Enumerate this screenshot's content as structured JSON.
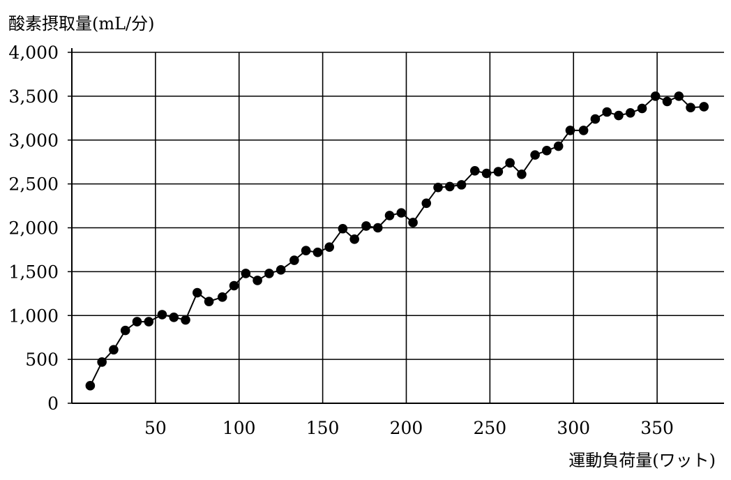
{
  "chart_data": {
    "type": "line",
    "title": "",
    "xlabel": "運動負荷量(ワット)",
    "ylabel": "酸素摂取量(mL/分)",
    "xlim": [
      0,
      390
    ],
    "ylim": [
      0,
      4000
    ],
    "grid": true,
    "x_ticks": [
      50,
      100,
      150,
      200,
      250,
      300,
      350
    ],
    "x_tick_labels": [
      "50",
      "100",
      "150",
      "200",
      "250",
      "300",
      "350"
    ],
    "y_ticks": [
      0,
      500,
      1000,
      1500,
      2000,
      2500,
      3000,
      3500,
      4000
    ],
    "y_tick_labels": [
      "0",
      "500",
      "1,000",
      "1,500",
      "2,000",
      "2,500",
      "3,000",
      "3,500",
      "4,000"
    ],
    "series": [
      {
        "x": [
          11,
          18,
          25,
          32,
          39,
          46,
          54,
          61,
          68,
          75,
          82,
          90,
          97,
          104,
          111,
          118,
          125,
          133,
          140,
          147,
          154,
          162,
          169,
          176,
          183,
          190,
          197,
          204,
          212,
          219,
          226,
          233,
          241,
          248,
          255,
          262,
          269,
          277,
          284,
          291,
          298,
          306,
          313,
          320,
          327,
          334,
          341,
          349,
          356,
          363,
          370,
          378
        ],
        "y": [
          200,
          470,
          610,
          830,
          930,
          930,
          1010,
          980,
          950,
          1260,
          1160,
          1210,
          1340,
          1480,
          1400,
          1480,
          1520,
          1630,
          1740,
          1720,
          1780,
          1990,
          1870,
          2020,
          2000,
          2140,
          2170,
          2060,
          2280,
          2460,
          2470,
          2490,
          2650,
          2620,
          2640,
          2740,
          2610,
          2830,
          2880,
          2930,
          3110,
          3110,
          3240,
          3320,
          3280,
          3310,
          3360,
          3500,
          3440,
          3500,
          3370,
          3380
        ]
      }
    ]
  }
}
